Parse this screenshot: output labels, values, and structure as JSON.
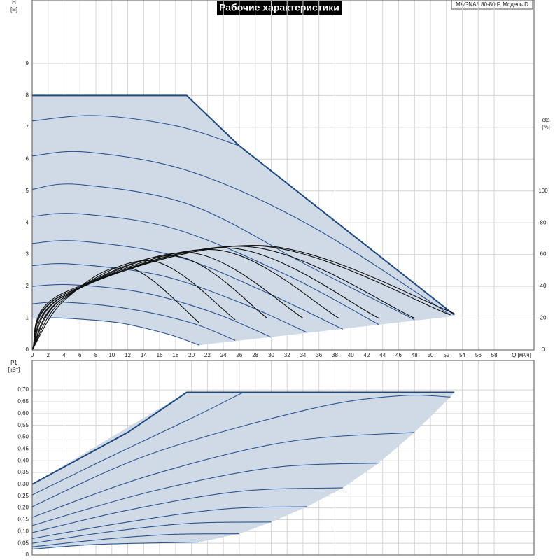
{
  "title": "Рабочие характеристики",
  "model": "MAGNA3 80-80 F, Модель D",
  "chart_data": [
    {
      "type": "line",
      "ylabel": "H",
      "yunit": "[м]",
      "y2label": "eta",
      "y2unit": "[%]",
      "xlabel": "Q [м³/ч]",
      "xlim": [
        0,
        63
      ],
      "ylim": [
        0,
        11
      ],
      "y2lim": [
        0,
        220
      ],
      "xticks": [
        0,
        2,
        4,
        6,
        8,
        10,
        12,
        14,
        16,
        18,
        20,
        22,
        24,
        26,
        28,
        30,
        32,
        34,
        36,
        38,
        40,
        42,
        44,
        46,
        48,
        50,
        52,
        54,
        56,
        58
      ],
      "yticks": [
        0,
        1,
        2,
        3,
        4,
        5,
        6,
        7,
        8,
        9
      ],
      "y2ticks": [
        0,
        20,
        40,
        60,
        80,
        100
      ],
      "grid": true,
      "area": {
        "color": "#cfdae6",
        "x": [
          0,
          19.4,
          26,
          53,
          52.5,
          21,
          17,
          11,
          4,
          0
        ],
        "values": [
          8,
          8,
          6.42,
          1.1,
          1.05,
          0.15,
          0.5,
          0.85,
          1.0,
          1.0
        ]
      },
      "series": [
        {
          "color": "#1f4a80",
          "smooth": false,
          "x": [
            0,
            19.4,
            26,
            53
          ],
          "values": [
            8,
            8,
            6.42,
            1.1
          ]
        },
        {
          "color": "#2a5590",
          "x": [
            0,
            8,
            18,
            26
          ],
          "values": [
            7.2,
            7.37,
            7.05,
            6.42
          ]
        },
        {
          "color": "#2a5590",
          "x": [
            0,
            7,
            20,
            35,
            52.5
          ],
          "values": [
            6.1,
            6.22,
            5.6,
            3.9,
            1.1
          ]
        },
        {
          "color": "#2a5590",
          "x": [
            0,
            6,
            20,
            35,
            48
          ],
          "values": [
            5.05,
            5.2,
            4.55,
            2.6,
            0.95
          ]
        },
        {
          "color": "#2a5590",
          "x": [
            0,
            6,
            18,
            32,
            43.5
          ],
          "values": [
            4.2,
            4.28,
            3.8,
            2.35,
            0.8
          ]
        },
        {
          "color": "#2a5590",
          "x": [
            0,
            6,
            18,
            29,
            39
          ],
          "values": [
            3.35,
            3.42,
            2.95,
            1.85,
            0.65
          ]
        },
        {
          "color": "#2a5590",
          "x": [
            0,
            5,
            16,
            26,
            34.5
          ],
          "values": [
            2.65,
            2.7,
            2.35,
            1.5,
            0.55
          ]
        },
        {
          "color": "#2a5590",
          "x": [
            0,
            5,
            14,
            23,
            30
          ],
          "values": [
            2.0,
            2.05,
            1.8,
            1.15,
            0.4
          ]
        },
        {
          "color": "#2a5590",
          "x": [
            0,
            4,
            12,
            20,
            25.5
          ],
          "values": [
            1.45,
            1.5,
            1.3,
            0.85,
            0.3
          ]
        },
        {
          "color": "#2a5590",
          "x": [
            0,
            4,
            11,
            17,
            21
          ],
          "values": [
            1.0,
            1.0,
            0.85,
            0.5,
            0.15
          ]
        },
        {
          "color": "#111111",
          "axis": "y2",
          "x": [
            0,
            4,
            12,
            21
          ],
          "values": [
            0,
            31,
            52,
            17
          ]
        },
        {
          "color": "#111111",
          "axis": "y2",
          "x": [
            0,
            4,
            15,
            25.5
          ],
          "values": [
            0,
            32,
            56,
            19
          ]
        },
        {
          "color": "#111111",
          "axis": "y2",
          "x": [
            0,
            4,
            18,
            29.5
          ],
          "values": [
            0,
            33,
            59,
            20
          ]
        },
        {
          "color": "#111111",
          "axis": "y2",
          "x": [
            0,
            4,
            20,
            34
          ],
          "values": [
            0,
            33,
            61,
            20
          ]
        },
        {
          "color": "#111111",
          "axis": "y2",
          "x": [
            0,
            4,
            23,
            38.5
          ],
          "values": [
            0,
            34,
            63,
            20
          ]
        },
        {
          "color": "#111111",
          "axis": "y2",
          "x": [
            0,
            4,
            25,
            43.5
          ],
          "values": [
            0,
            34,
            64,
            20
          ]
        },
        {
          "color": "#111111",
          "axis": "y2",
          "x": [
            0,
            4,
            27,
            48
          ],
          "values": [
            0,
            35,
            65,
            20
          ]
        },
        {
          "color": "#111111",
          "axis": "y2",
          "x": [
            0,
            4,
            28.5,
            52.5
          ],
          "values": [
            0,
            35,
            65.4,
            22
          ]
        },
        {
          "color": "#111111",
          "axis": "y2",
          "x": [
            0,
            4,
            29,
            53
          ],
          "values": [
            0,
            36,
            65.6,
            23
          ]
        }
      ]
    },
    {
      "type": "line",
      "ylabel": "P1",
      "yunit": "[кВт]",
      "xlim": [
        0,
        63
      ],
      "ylim": [
        0,
        0.825
      ],
      "yticks": [
        0,
        {
          "value": 0.05,
          "label": "0,05"
        },
        {
          "value": 0.1,
          "label": "0,10"
        },
        {
          "value": 0.15,
          "label": "0,15"
        },
        {
          "value": 0.2,
          "label": "0,20"
        },
        {
          "value": 0.25,
          "label": "0,25"
        },
        {
          "value": 0.3,
          "label": "0,30"
        },
        {
          "value": 0.35,
          "label": "0,35"
        },
        {
          "value": 0.4,
          "label": "0,40"
        },
        {
          "value": 0.45,
          "label": "0,45"
        },
        {
          "value": 0.5,
          "label": "0,50"
        },
        {
          "value": 0.55,
          "label": "0,55"
        },
        {
          "value": 0.6,
          "label": "0,60"
        },
        {
          "value": 0.65,
          "label": "0,65"
        },
        {
          "value": 0.7,
          "label": "0,70"
        }
      ],
      "grid": true,
      "area": {
        "color": "#cfdae6",
        "x": [
          0,
          19.4,
          53,
          52.5,
          48,
          43.5,
          39,
          34.5,
          30,
          26,
          21,
          8,
          0
        ],
        "values": [
          0.3,
          0.69,
          0.69,
          0.67,
          0.52,
          0.39,
          0.285,
          0.205,
          0.14,
          0.09,
          0.055,
          0.045,
          0.025
        ]
      },
      "series": [
        {
          "color": "#1f4a80",
          "smooth": false,
          "x": [
            0,
            12,
            19.4,
            53
          ],
          "values": [
            0.3,
            0.52,
            0.69,
            0.69
          ]
        },
        {
          "color": "#2a5590",
          "x": [
            0,
            10,
            20,
            26.5
          ],
          "values": [
            0.255,
            0.42,
            0.58,
            0.69
          ]
        },
        {
          "color": "#2a5590",
          "x": [
            0,
            15,
            35,
            46,
            52.5
          ],
          "values": [
            0.205,
            0.43,
            0.62,
            0.675,
            0.67
          ]
        },
        {
          "color": "#2a5590",
          "x": [
            0,
            15,
            32,
            48
          ],
          "values": [
            0.16,
            0.34,
            0.48,
            0.52
          ]
        },
        {
          "color": "#2a5590",
          "x": [
            0,
            15,
            30,
            43.5
          ],
          "values": [
            0.125,
            0.27,
            0.37,
            0.39
          ]
        },
        {
          "color": "#2a5590",
          "x": [
            0,
            12,
            26,
            39
          ],
          "values": [
            0.095,
            0.19,
            0.27,
            0.285
          ]
        },
        {
          "color": "#2a5590",
          "x": [
            0,
            12,
            24,
            34.5
          ],
          "values": [
            0.07,
            0.14,
            0.195,
            0.205
          ]
        },
        {
          "color": "#2a5590",
          "x": [
            0,
            10,
            20,
            30
          ],
          "values": [
            0.05,
            0.1,
            0.135,
            0.14
          ]
        },
        {
          "color": "#2a5590",
          "x": [
            0,
            10,
            18,
            26
          ],
          "values": [
            0.035,
            0.07,
            0.088,
            0.09
          ]
        },
        {
          "color": "#2a5590",
          "x": [
            0,
            8,
            21
          ],
          "values": [
            0.025,
            0.045,
            0.055
          ]
        }
      ]
    }
  ]
}
